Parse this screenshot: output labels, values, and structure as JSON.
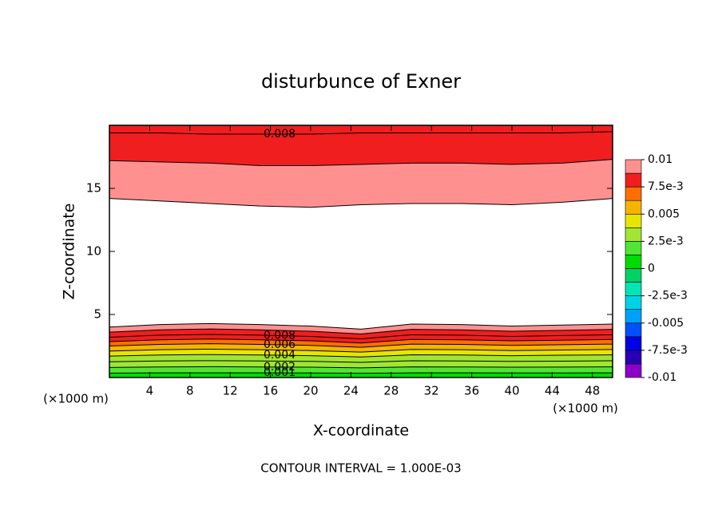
{
  "chart_data": {
    "type": "contour",
    "title": "disturbunce of Exner",
    "x_label": "X-coordinate",
    "y_label": "Z-coordinate",
    "x_unit_label": "(×1000 m)",
    "y_unit_label": "(×1000 m)",
    "footer": "CONTOUR INTERVAL = 1.000E-03",
    "xlim": [
      0,
      50
    ],
    "xticks": [
      4,
      8,
      12,
      16,
      20,
      24,
      28,
      32,
      36,
      40,
      44,
      48
    ],
    "ylim": [
      0,
      20
    ],
    "yticks": [
      5,
      10,
      15
    ],
    "x": [
      0,
      5,
      10,
      15,
      20,
      25,
      30,
      35,
      40,
      45,
      50
    ],
    "contour_groups": [
      {
        "contours": [
          {
            "level": 0.001,
            "labeled": true,
            "y": [
              0.35,
              0.37,
              0.37,
              0.37,
              0.36,
              0.34,
              0.37,
              0.37,
              0.36,
              0.36,
              0.37
            ]
          },
          {
            "level": 0.002,
            "labeled": true,
            "y": [
              0.8,
              0.84,
              0.86,
              0.84,
              0.82,
              0.77,
              0.85,
              0.84,
              0.82,
              0.83,
              0.85
            ]
          },
          {
            "level": 0.003,
            "labeled": false,
            "y": [
              1.25,
              1.31,
              1.34,
              1.31,
              1.28,
              1.2,
              1.33,
              1.31,
              1.28,
              1.3,
              1.33
            ]
          },
          {
            "level": 0.004,
            "labeled": true,
            "y": [
              1.7,
              1.79,
              1.82,
              1.79,
              1.73,
              1.63,
              1.8,
              1.79,
              1.73,
              1.77,
              1.8
            ]
          },
          {
            "level": 0.005,
            "labeled": false,
            "y": [
              2.1,
              2.21,
              2.25,
              2.21,
              2.14,
              2.02,
              2.23,
              2.21,
              2.14,
              2.18,
              2.23
            ]
          },
          {
            "level": 0.006,
            "labeled": true,
            "y": [
              2.5,
              2.63,
              2.68,
              2.63,
              2.55,
              2.4,
              2.65,
              2.63,
              2.55,
              2.6,
              2.65
            ]
          },
          {
            "level": 0.007,
            "labeled": false,
            "y": [
              2.85,
              2.99,
              3.05,
              2.99,
              2.91,
              2.74,
              3.02,
              2.99,
              2.91,
              2.96,
              3.02
            ]
          },
          {
            "level": 0.008,
            "labeled": true,
            "y": [
              3.2,
              3.36,
              3.42,
              3.36,
              3.26,
              3.07,
              3.39,
              3.36,
              3.26,
              3.33,
              3.39
            ]
          },
          {
            "level": 0.009,
            "labeled": false,
            "y": [
              3.6,
              3.78,
              3.85,
              3.78,
              3.67,
              3.46,
              3.82,
              3.78,
              3.67,
              3.74,
              3.82
            ]
          },
          {
            "level": 0.01,
            "labeled": false,
            "y": [
              4.0,
              4.2,
              4.28,
              4.2,
              4.08,
              3.84,
              4.24,
              4.2,
              4.08,
              4.16,
              4.24
            ]
          }
        ]
      },
      {
        "contours": [
          {
            "level": 0.008,
            "labeled": true,
            "y": [
              19.4,
              19.4,
              19.3,
              19.3,
              19.3,
              19.4,
              19.4,
              19.4,
              19.4,
              19.4,
              19.5
            ]
          },
          {
            "level": 0.009,
            "labeled": false,
            "y": [
              17.2,
              17.1,
              17.0,
              16.8,
              16.8,
              16.9,
              17.0,
              17.0,
              16.9,
              17.0,
              17.3
            ]
          },
          {
            "level": 0.01,
            "labeled": false,
            "y": [
              14.2,
              14.0,
              13.8,
              13.6,
              13.5,
              13.7,
              13.8,
              13.8,
              13.7,
              13.9,
              14.2
            ]
          }
        ]
      }
    ],
    "colorbar_levels": [
      -0.01,
      -0.00875,
      -0.0075,
      -0.00625,
      -0.005,
      -0.00375,
      -0.0025,
      -0.00125,
      0,
      0.00125,
      0.0025,
      0.00375,
      0.005,
      0.00625,
      0.0075,
      0.00875,
      0.01
    ],
    "colorbar_colors": [
      "#8c00c8",
      "#2800b4",
      "#0000e6",
      "#0050ff",
      "#00a0ff",
      "#00d2e6",
      "#00e6b4",
      "#00d264",
      "#00dc00",
      "#50e632",
      "#a0e632",
      "#e6e600",
      "#f5b400",
      "#ff6e00",
      "#f01e1e",
      "#ff9090"
    ],
    "colorbar_ticks": [
      0.01,
      {
        "value": 0.0075,
        "label": "7.5e-3"
      },
      0.005,
      {
        "value": 0.0025,
        "label": "2.5e-3"
      },
      0,
      {
        "value": -0.0025,
        "label": "-2.5e-3"
      },
      -0.005,
      {
        "value": -0.0075,
        "label": "-7.5e-3"
      },
      -0.01
    ]
  }
}
